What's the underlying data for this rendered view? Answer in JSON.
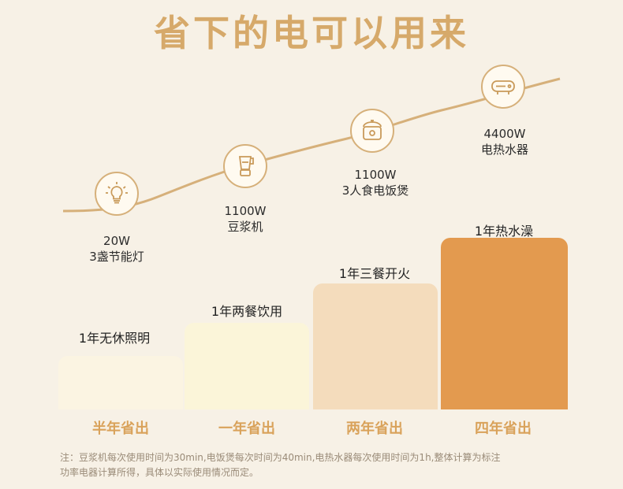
{
  "title": "省下的电可以用来",
  "appliances": [
    {
      "icon": "lightbulb-icon",
      "power": "20W",
      "name": "3盏节能灯"
    },
    {
      "icon": "blender-icon",
      "power": "1100W",
      "name": "豆浆机"
    },
    {
      "icon": "rice-cooker-icon",
      "power": "1100W",
      "name": "3人食电饭煲"
    },
    {
      "icon": "water-heater-icon",
      "power": "4400W",
      "name": "电热水器"
    }
  ],
  "bars": [
    {
      "label": "1年无休照明",
      "period": "半年省出",
      "color": "#fbf4e2",
      "level": 1
    },
    {
      "label": "1年两餐饮用",
      "period": "一年省出",
      "color": "#fbf5d9",
      "level": 2
    },
    {
      "label": "1年三餐开火",
      "period": "两年省出",
      "color": "#f4dcbc",
      "level": 3
    },
    {
      "label": "1年热水澡",
      "period": "四年省出",
      "color": "#e39a4f",
      "level": 4
    }
  ],
  "colors": {
    "accent": "#d6a96a",
    "curve": "#d6b07a",
    "period_text": "#d9a25a"
  },
  "note": {
    "line1": "注：豆浆机每次使用时间为30min,电饭煲每次时间为40min,电热水器每次使用时间为1h,整体计算为标注",
    "line2": "功率电器计算所得，具体以实际使用情况而定。"
  }
}
